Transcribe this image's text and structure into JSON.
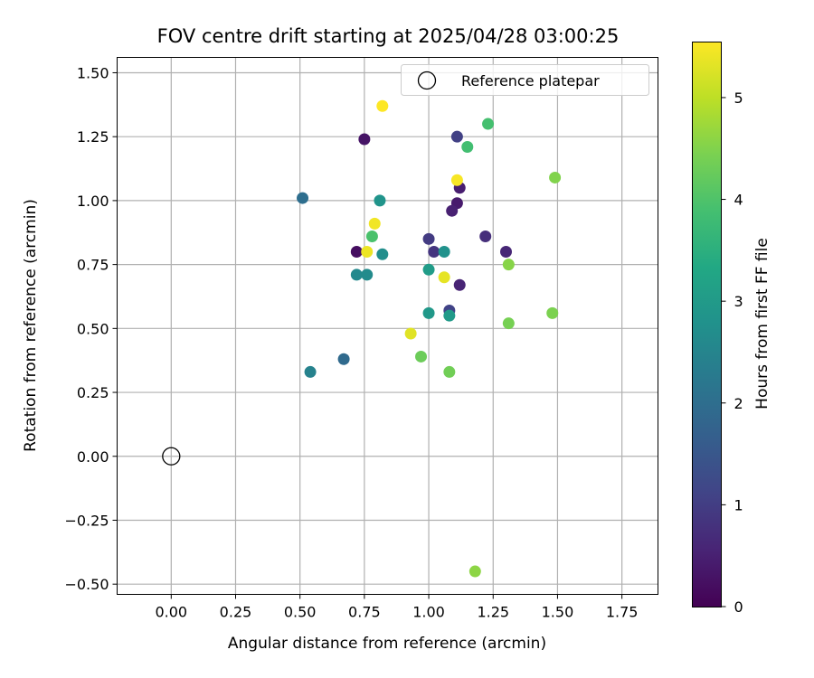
{
  "chart_data": {
    "type": "scatter",
    "title": "FOV centre drift starting at 2025/04/28 03:00:25",
    "xlabel": "Angular distance from reference (arcmin)",
    "ylabel": "Rotation from reference (arcmin)",
    "xlim": [
      -0.21,
      1.89
    ],
    "ylim": [
      -0.54,
      1.56
    ],
    "xticks": [
      0,
      0.25,
      0.5,
      0.75,
      1.0,
      1.25,
      1.5,
      1.75
    ],
    "xtick_labels": [
      "0.00",
      "0.25",
      "0.50",
      "0.75",
      "1.00",
      "1.25",
      "1.50",
      "1.75"
    ],
    "yticks": [
      -0.5,
      -0.25,
      0,
      0.25,
      0.5,
      0.75,
      1.0,
      1.25,
      1.5
    ],
    "ytick_labels": [
      "−0.50",
      "−0.25",
      "0.00",
      "0.25",
      "0.50",
      "0.75",
      "1.00",
      "1.25",
      "1.50"
    ],
    "grid": true,
    "legend": {
      "position": "top-right",
      "label": "Reference platepar"
    },
    "reference": {
      "x": 0.0,
      "y": 0.0
    },
    "colorbar": {
      "label": "Hours from first FF file",
      "range": [
        0,
        5.55
      ],
      "ticks": [
        0,
        1,
        2,
        3,
        4,
        5
      ],
      "tick_labels": [
        "0",
        "1",
        "2",
        "3",
        "4",
        "5"
      ],
      "colormap": "viridis"
    },
    "points": [
      {
        "x": 0.72,
        "y": 0.8,
        "c": 0.2
      },
      {
        "x": 0.75,
        "y": 1.24,
        "c": 0.3
      },
      {
        "x": 1.11,
        "y": 0.99,
        "c": 0.4
      },
      {
        "x": 1.12,
        "y": 1.05,
        "c": 0.45
      },
      {
        "x": 1.09,
        "y": 0.96,
        "c": 0.5
      },
      {
        "x": 1.12,
        "y": 0.67,
        "c": 0.55
      },
      {
        "x": 1.3,
        "y": 0.8,
        "c": 0.6
      },
      {
        "x": 1.22,
        "y": 0.86,
        "c": 0.75
      },
      {
        "x": 1.02,
        "y": 0.8,
        "c": 0.85
      },
      {
        "x": 1.0,
        "y": 0.85,
        "c": 0.95
      },
      {
        "x": 1.11,
        "y": 1.25,
        "c": 1.05
      },
      {
        "x": 1.08,
        "y": 0.57,
        "c": 1.1
      },
      {
        "x": 0.67,
        "y": 0.38,
        "c": 1.9
      },
      {
        "x": 0.51,
        "y": 1.01,
        "c": 2.0
      },
      {
        "x": 0.54,
        "y": 0.33,
        "c": 2.45
      },
      {
        "x": 0.72,
        "y": 0.71,
        "c": 2.6
      },
      {
        "x": 0.76,
        "y": 0.71,
        "c": 2.65
      },
      {
        "x": 0.82,
        "y": 0.79,
        "c": 2.7
      },
      {
        "x": 1.06,
        "y": 0.8,
        "c": 2.8
      },
      {
        "x": 0.81,
        "y": 1.0,
        "c": 2.85
      },
      {
        "x": 1.0,
        "y": 0.56,
        "c": 2.95
      },
      {
        "x": 1.08,
        "y": 0.55,
        "c": 3.0
      },
      {
        "x": 1.0,
        "y": 0.73,
        "c": 3.05
      },
      {
        "x": 1.15,
        "y": 1.21,
        "c": 3.85
      },
      {
        "x": 1.23,
        "y": 1.3,
        "c": 3.9
      },
      {
        "x": 0.78,
        "y": 0.86,
        "c": 3.95
      },
      {
        "x": 0.97,
        "y": 0.39,
        "c": 4.3
      },
      {
        "x": 1.08,
        "y": 0.33,
        "c": 4.35
      },
      {
        "x": 1.31,
        "y": 0.52,
        "c": 4.4
      },
      {
        "x": 1.48,
        "y": 0.56,
        "c": 4.45
      },
      {
        "x": 1.49,
        "y": 1.09,
        "c": 4.5
      },
      {
        "x": 1.31,
        "y": 0.75,
        "c": 4.55
      },
      {
        "x": 1.18,
        "y": -0.45,
        "c": 4.6
      },
      {
        "x": 0.93,
        "y": 0.48,
        "c": 5.3
      },
      {
        "x": 1.06,
        "y": 0.7,
        "c": 5.35
      },
      {
        "x": 0.76,
        "y": 0.8,
        "c": 5.4
      },
      {
        "x": 0.79,
        "y": 0.91,
        "c": 5.45
      },
      {
        "x": 1.11,
        "y": 1.08,
        "c": 5.5
      },
      {
        "x": 0.82,
        "y": 1.37,
        "c": 5.55
      }
    ]
  }
}
